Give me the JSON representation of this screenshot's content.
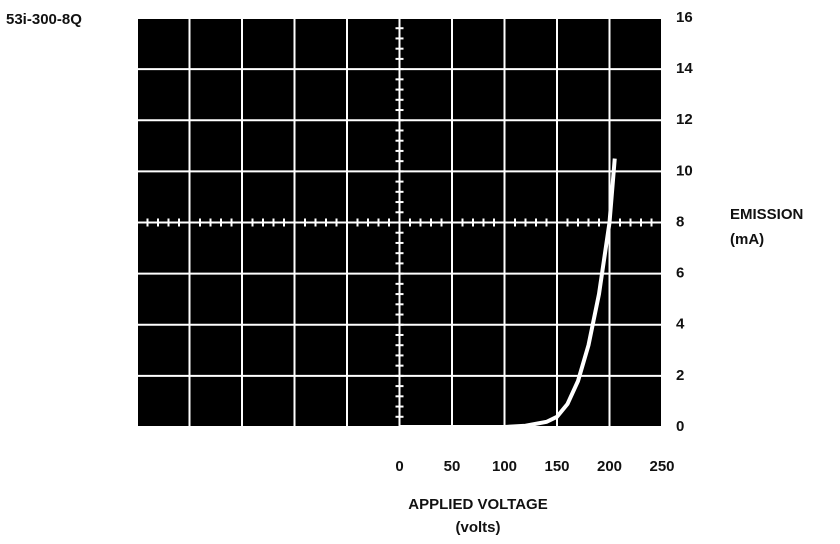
{
  "chart_data": {
    "type": "line",
    "title": "53i-300-8Q",
    "x_label": "APPLIED VOLTAGE",
    "x_unit": "(volts)",
    "y_label": "EMISSION",
    "y_unit": "(mA)",
    "x": [
      0,
      50,
      100,
      120,
      140,
      150,
      160,
      170,
      180,
      190,
      200,
      205
    ],
    "values": [
      0,
      0,
      0,
      0.05,
      0.2,
      0.4,
      0.9,
      1.8,
      3.2,
      5.2,
      8.0,
      10.5
    ],
    "color": "#ffffff",
    "xlim": [
      -250,
      250
    ],
    "xticks": [
      0,
      50,
      100,
      150,
      200,
      250
    ],
    "ylim": [
      0,
      16
    ],
    "yticks": [
      0,
      2,
      4,
      6,
      8,
      10,
      12,
      14,
      16
    ],
    "grid": true
  }
}
